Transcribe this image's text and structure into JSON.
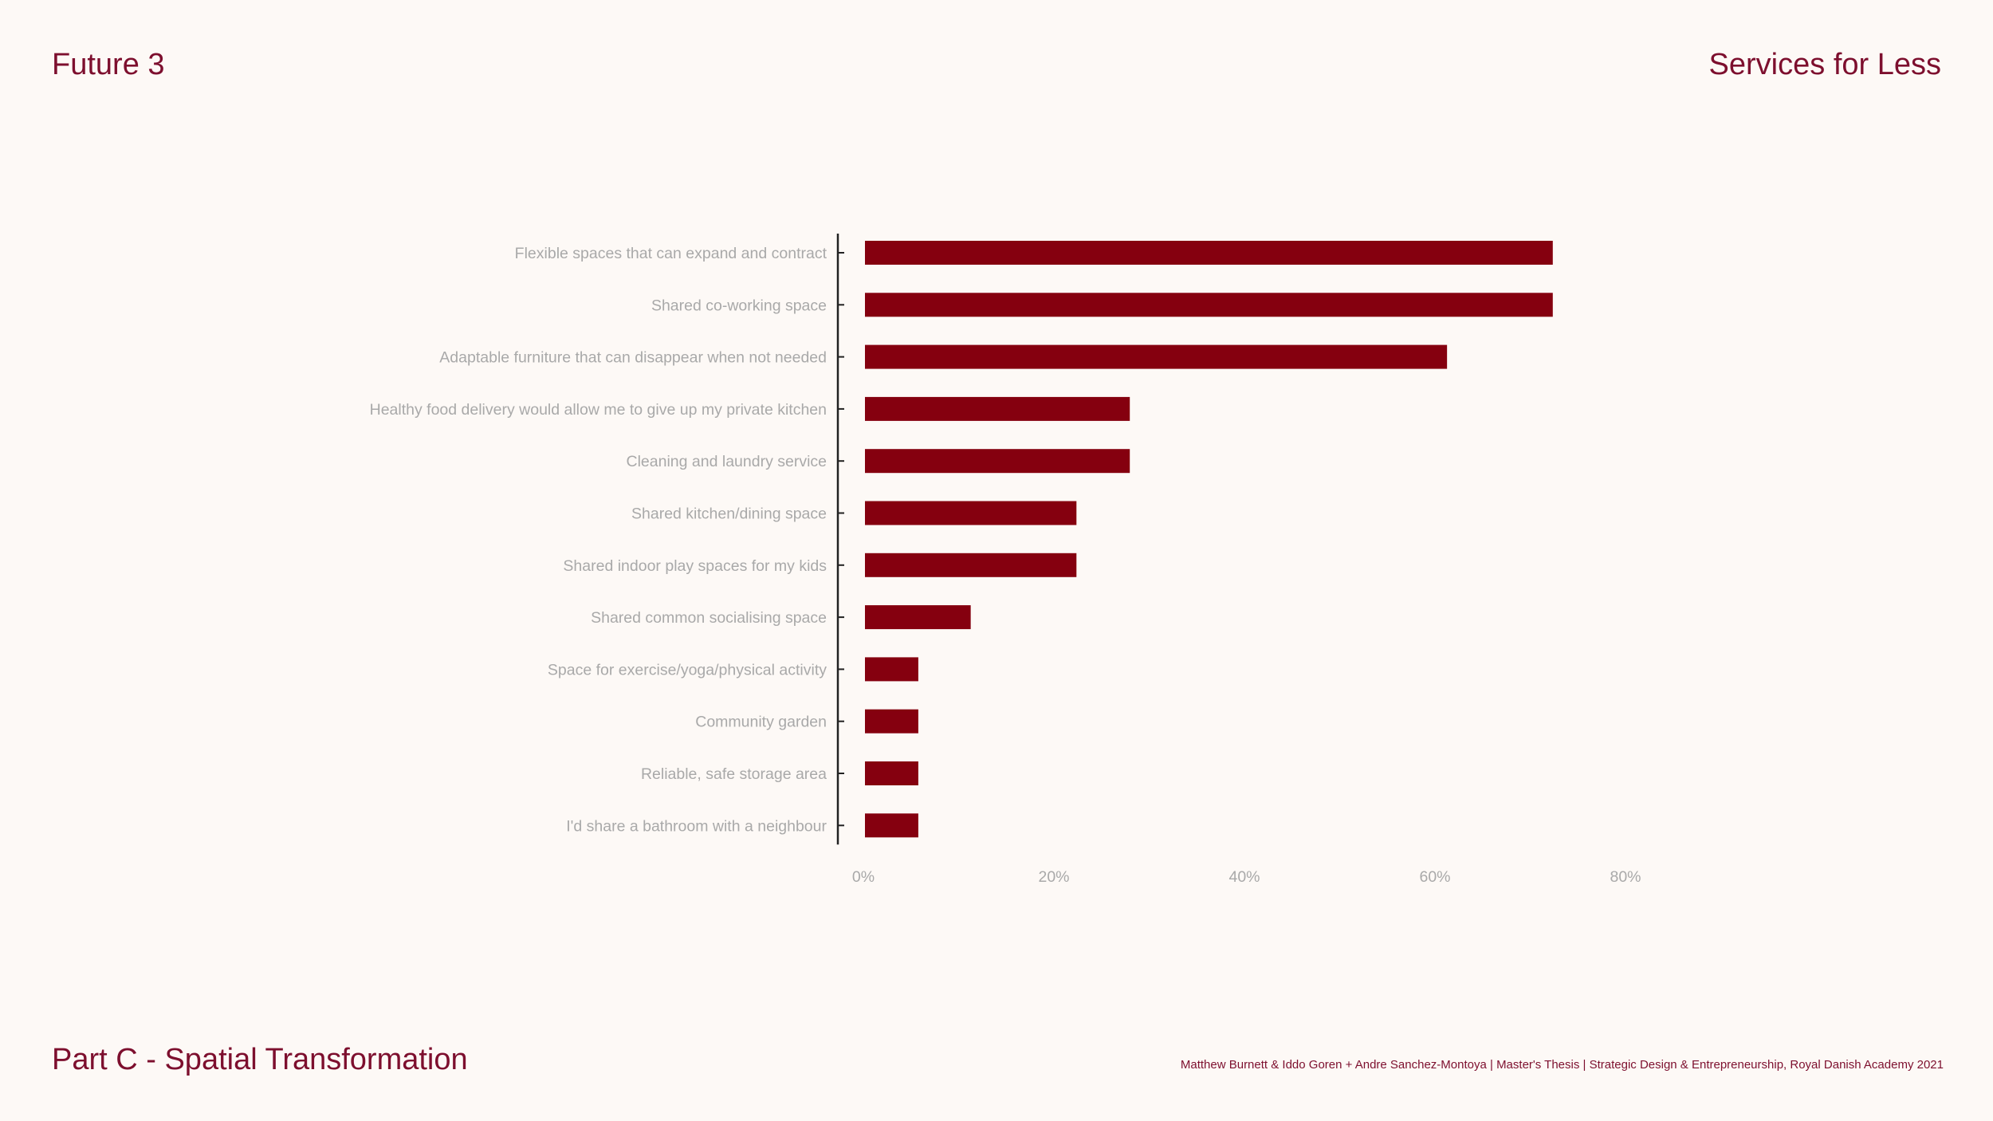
{
  "header": {
    "left_title": "Future 3",
    "right_title": "Services for Less"
  },
  "footer": {
    "section_title": "Part C - Spatial Transformation",
    "credit": "Matthew Burnett & Iddo Goren +  Andre Sanchez-Montoya | Master's Thesis | Strategic Design & Entrepreneurship, Royal Danish Academy 2021"
  },
  "colors": {
    "accent": "#7d0f2e",
    "bar": "#85000f",
    "label": "#a9a9a9",
    "background": "#fdf9f6"
  },
  "chart_data": {
    "type": "bar",
    "orientation": "horizontal",
    "categories": [
      "Flexible spaces that can expand and contract",
      "Shared co-working space",
      "Adaptable furniture that can disappear when not needed",
      "Healthy food delivery would allow me to give up my private kitchen",
      "Cleaning and laundry service",
      "Shared kitchen/dining space",
      "Shared indoor play spaces for my kids",
      "Shared common socialising space",
      "Space for exercise/yoga/physical activity",
      "Community garden",
      "Reliable, safe storage area",
      "I'd share a bathroom with a neighbour"
    ],
    "values": [
      72.2,
      72.2,
      61.1,
      27.8,
      27.8,
      22.2,
      22.2,
      11.1,
      5.6,
      5.6,
      5.6,
      5.6
    ],
    "xlim": [
      0,
      80
    ],
    "xticks": [
      0,
      20,
      40,
      60,
      80
    ],
    "tick_labels": [
      "0%",
      "20%",
      "40%",
      "60%",
      "80%"
    ],
    "grid": false,
    "legend": "none"
  }
}
